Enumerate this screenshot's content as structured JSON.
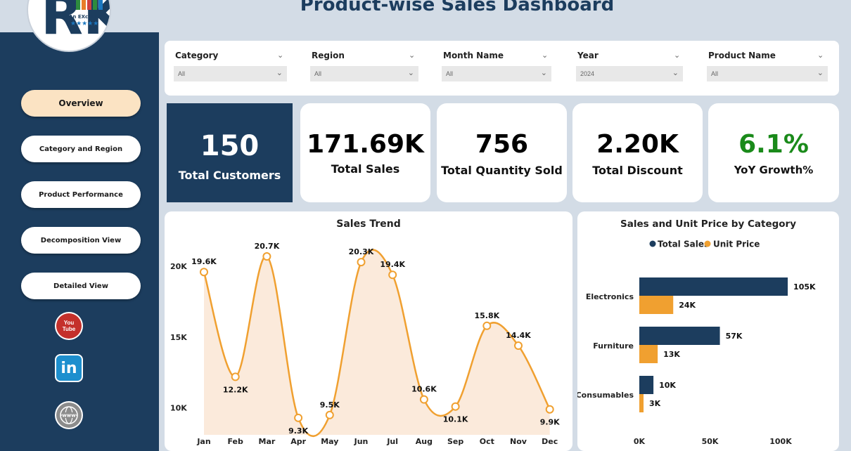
{
  "title": "Product-wise Sales Dashboard",
  "logo": {
    "letters": "RK",
    "tagline": "An EXcel Expert",
    "stars": "★★★★★"
  },
  "nav": [
    {
      "label": "Overview",
      "active": true
    },
    {
      "label": "Category and Region",
      "active": false
    },
    {
      "label": "Product Performance",
      "active": false
    },
    {
      "label": "Decomposition View",
      "active": false
    },
    {
      "label": "Detailed View",
      "active": false
    }
  ],
  "social": {
    "youtube": "You\nTube",
    "linkedin": "in",
    "web": "www"
  },
  "filters": [
    {
      "label": "Category",
      "value": "All"
    },
    {
      "label": "Region",
      "value": "All"
    },
    {
      "label": "Month Name",
      "value": "All"
    },
    {
      "label": "Year",
      "value": "2024"
    },
    {
      "label": "Product Name",
      "value": "All"
    }
  ],
  "kpis": [
    {
      "value": "150",
      "label": "Total Customers"
    },
    {
      "value": "171.69K",
      "label": "Total Sales"
    },
    {
      "value": "756",
      "label": "Total Quantity Sold"
    },
    {
      "value": "2.20K",
      "label": "Total Discount"
    },
    {
      "value": "6.1%",
      "label": "YoY Growth%"
    }
  ],
  "colors": {
    "navy": "#1c3d5e",
    "orange": "#f0a030",
    "growth_green": "#1a8a1a",
    "area_fill": "#fbeadb"
  },
  "chart_data": [
    {
      "type": "line",
      "title": "Sales Trend",
      "categories": [
        "Jan",
        "Feb",
        "Mar",
        "Apr",
        "May",
        "Jun",
        "Jul",
        "Aug",
        "Sep",
        "Oct",
        "Nov",
        "Dec"
      ],
      "values": [
        19.6,
        12.2,
        20.7,
        9.3,
        9.5,
        20.3,
        19.4,
        10.6,
        10.1,
        15.8,
        14.4,
        9.9
      ],
      "data_labels": [
        "19.6K",
        "12.2K",
        "20.7K",
        "9.3K",
        "9.5K",
        "20.3K",
        "19.4K",
        "10.6K",
        "10.1K",
        "15.8K",
        "14.4K",
        "9.9K"
      ],
      "yticks": [
        "10K",
        "15K",
        "20K"
      ],
      "ytick_values": [
        10,
        15,
        20
      ],
      "ylim": [
        8.1,
        21.0
      ],
      "grid": false
    },
    {
      "type": "bar",
      "orientation": "horizontal",
      "title": "Sales and Unit Price by Category",
      "categories": [
        "Electronics",
        "Furniture",
        "Consumables"
      ],
      "series": [
        {
          "name": "Total Sales",
          "values": [
            105,
            57,
            10
          ],
          "labels": [
            "105K",
            "57K",
            "10K"
          ]
        },
        {
          "name": "Unit Price",
          "values": [
            24,
            13,
            3
          ],
          "labels": [
            "24K",
            "13K",
            "3K"
          ]
        }
      ],
      "xticks": [
        "0K",
        "50K",
        "100K"
      ],
      "xtick_values": [
        0,
        50,
        100
      ],
      "xlim": [
        0,
        110
      ],
      "legend": "top-center"
    }
  ]
}
